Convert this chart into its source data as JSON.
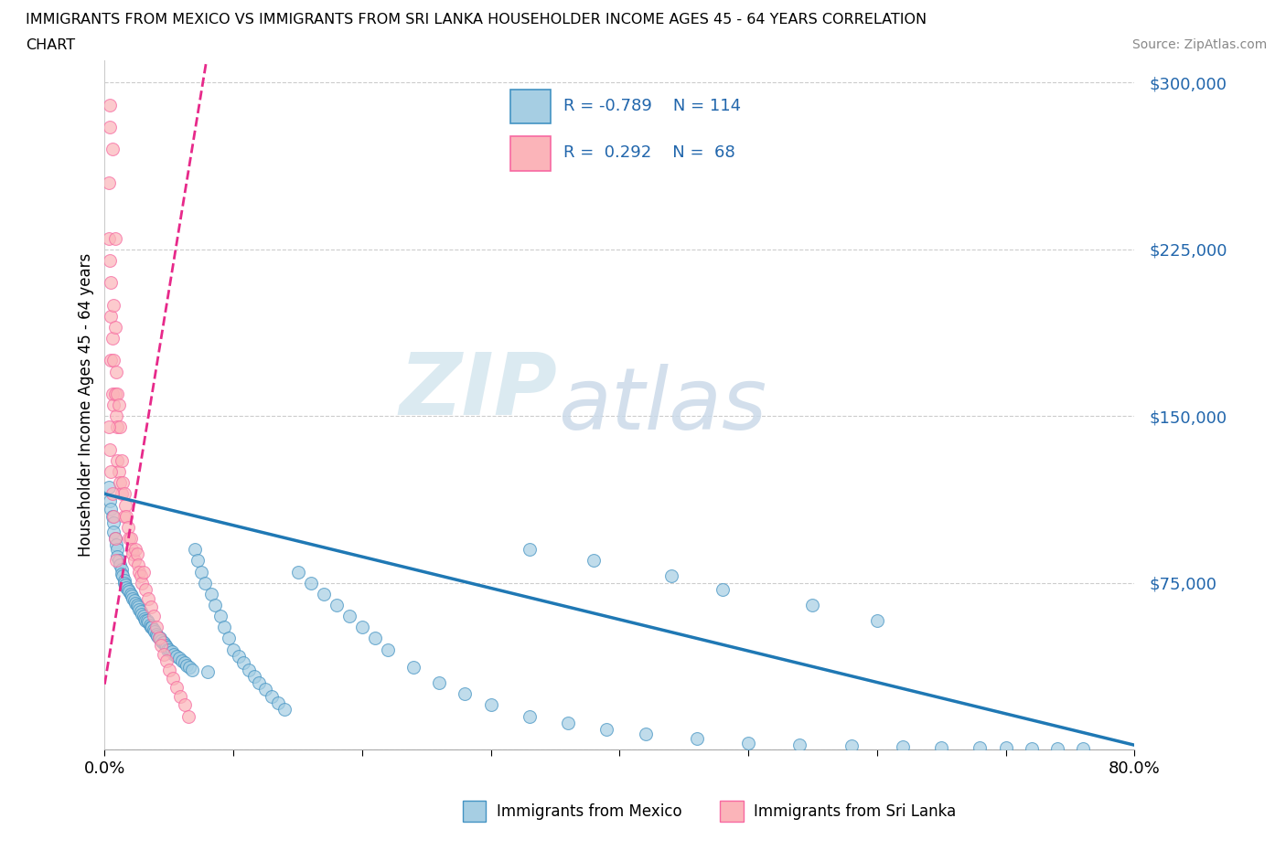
{
  "title_line1": "IMMIGRANTS FROM MEXICO VS IMMIGRANTS FROM SRI LANKA HOUSEHOLDER INCOME AGES 45 - 64 YEARS CORRELATION",
  "title_line2": "CHART",
  "source_text": "Source: ZipAtlas.com",
  "ylabel": "Householder Income Ages 45 - 64 years",
  "xlim": [
    0.0,
    0.8
  ],
  "ylim": [
    0,
    310000
  ],
  "ytick_vals": [
    0,
    75000,
    150000,
    225000,
    300000
  ],
  "ytick_labels": [
    "",
    "$75,000",
    "$150,000",
    "$225,000",
    "$300,000"
  ],
  "xtick_vals": [
    0.0,
    0.1,
    0.2,
    0.3,
    0.4,
    0.5,
    0.6,
    0.7,
    0.8
  ],
  "xtick_labels": [
    "0.0%",
    "",
    "",
    "",
    "",
    "",
    "",
    "",
    "80.0%"
  ],
  "mexico_color": "#a6cee3",
  "mexico_edge_color": "#4393c3",
  "srilanka_color": "#fbb4b9",
  "srilanka_edge_color": "#f768a1",
  "mexico_line_color": "#1f78b4",
  "srilanka_line_color": "#e7298a",
  "watermark_zip": "ZIP",
  "watermark_atlas": "atlas",
  "legend_label_mexico": "Immigrants from Mexico",
  "legend_label_srilanka": "Immigrants from Sri Lanka",
  "mexico_x": [
    0.003,
    0.004,
    0.005,
    0.006,
    0.007,
    0.007,
    0.008,
    0.009,
    0.01,
    0.01,
    0.011,
    0.012,
    0.013,
    0.013,
    0.014,
    0.015,
    0.015,
    0.016,
    0.017,
    0.018,
    0.019,
    0.02,
    0.021,
    0.022,
    0.023,
    0.024,
    0.025,
    0.026,
    0.027,
    0.028,
    0.029,
    0.03,
    0.031,
    0.032,
    0.033,
    0.034,
    0.035,
    0.036,
    0.037,
    0.038,
    0.039,
    0.04,
    0.041,
    0.042,
    0.043,
    0.044,
    0.045,
    0.046,
    0.047,
    0.048,
    0.049,
    0.05,
    0.052,
    0.054,
    0.056,
    0.058,
    0.06,
    0.062,
    0.064,
    0.066,
    0.068,
    0.07,
    0.072,
    0.075,
    0.078,
    0.08,
    0.083,
    0.086,
    0.09,
    0.093,
    0.096,
    0.1,
    0.104,
    0.108,
    0.112,
    0.116,
    0.12,
    0.125,
    0.13,
    0.135,
    0.14,
    0.15,
    0.16,
    0.17,
    0.18,
    0.19,
    0.2,
    0.21,
    0.22,
    0.24,
    0.26,
    0.28,
    0.3,
    0.33,
    0.36,
    0.39,
    0.42,
    0.46,
    0.5,
    0.54,
    0.58,
    0.62,
    0.65,
    0.68,
    0.7,
    0.72,
    0.74,
    0.76,
    0.33,
    0.38,
    0.44,
    0.48,
    0.55,
    0.6
  ],
  "mexico_y": [
    118000,
    112000,
    108000,
    105000,
    102000,
    98000,
    95000,
    92000,
    90000,
    87000,
    85000,
    83000,
    81000,
    79000,
    78000,
    76000,
    75000,
    74000,
    73000,
    72000,
    71000,
    70000,
    69000,
    68000,
    67000,
    66000,
    65000,
    64000,
    63000,
    62000,
    61000,
    60000,
    59000,
    58000,
    58000,
    57000,
    56000,
    55000,
    55000,
    54000,
    53000,
    52000,
    51000,
    50000,
    50000,
    49000,
    48000,
    48000,
    47000,
    46000,
    45000,
    45000,
    44000,
    43000,
    42000,
    41000,
    40000,
    39000,
    38000,
    37000,
    36000,
    90000,
    85000,
    80000,
    75000,
    35000,
    70000,
    65000,
    60000,
    55000,
    50000,
    45000,
    42000,
    39000,
    36000,
    33000,
    30000,
    27000,
    24000,
    21000,
    18000,
    80000,
    75000,
    70000,
    65000,
    60000,
    55000,
    50000,
    45000,
    37000,
    30000,
    25000,
    20000,
    15000,
    12000,
    9000,
    7000,
    5000,
    3000,
    2000,
    1500,
    1200,
    1000,
    800,
    700,
    600,
    500,
    400,
    90000,
    85000,
    78000,
    72000,
    65000,
    58000
  ],
  "srilanka_x": [
    0.003,
    0.003,
    0.004,
    0.004,
    0.005,
    0.005,
    0.005,
    0.006,
    0.006,
    0.006,
    0.007,
    0.007,
    0.007,
    0.008,
    0.008,
    0.008,
    0.009,
    0.009,
    0.01,
    0.01,
    0.01,
    0.011,
    0.011,
    0.012,
    0.012,
    0.013,
    0.013,
    0.014,
    0.015,
    0.015,
    0.016,
    0.017,
    0.018,
    0.019,
    0.02,
    0.021,
    0.022,
    0.023,
    0.024,
    0.025,
    0.026,
    0.027,
    0.028,
    0.029,
    0.03,
    0.032,
    0.034,
    0.036,
    0.038,
    0.04,
    0.042,
    0.044,
    0.046,
    0.048,
    0.05,
    0.053,
    0.056,
    0.059,
    0.062,
    0.065,
    0.003,
    0.004,
    0.005,
    0.006,
    0.007,
    0.008,
    0.009,
    0.004
  ],
  "srilanka_y": [
    255000,
    230000,
    220000,
    280000,
    210000,
    195000,
    175000,
    270000,
    185000,
    160000,
    200000,
    175000,
    155000,
    230000,
    190000,
    160000,
    150000,
    170000,
    145000,
    160000,
    130000,
    155000,
    125000,
    145000,
    120000,
    130000,
    115000,
    120000,
    115000,
    105000,
    110000,
    105000,
    100000,
    95000,
    95000,
    90000,
    88000,
    85000,
    90000,
    88000,
    83000,
    80000,
    78000,
    75000,
    80000,
    72000,
    68000,
    64000,
    60000,
    55000,
    50000,
    47000,
    43000,
    40000,
    36000,
    32000,
    28000,
    24000,
    20000,
    15000,
    145000,
    135000,
    125000,
    115000,
    105000,
    95000,
    85000,
    290000
  ]
}
